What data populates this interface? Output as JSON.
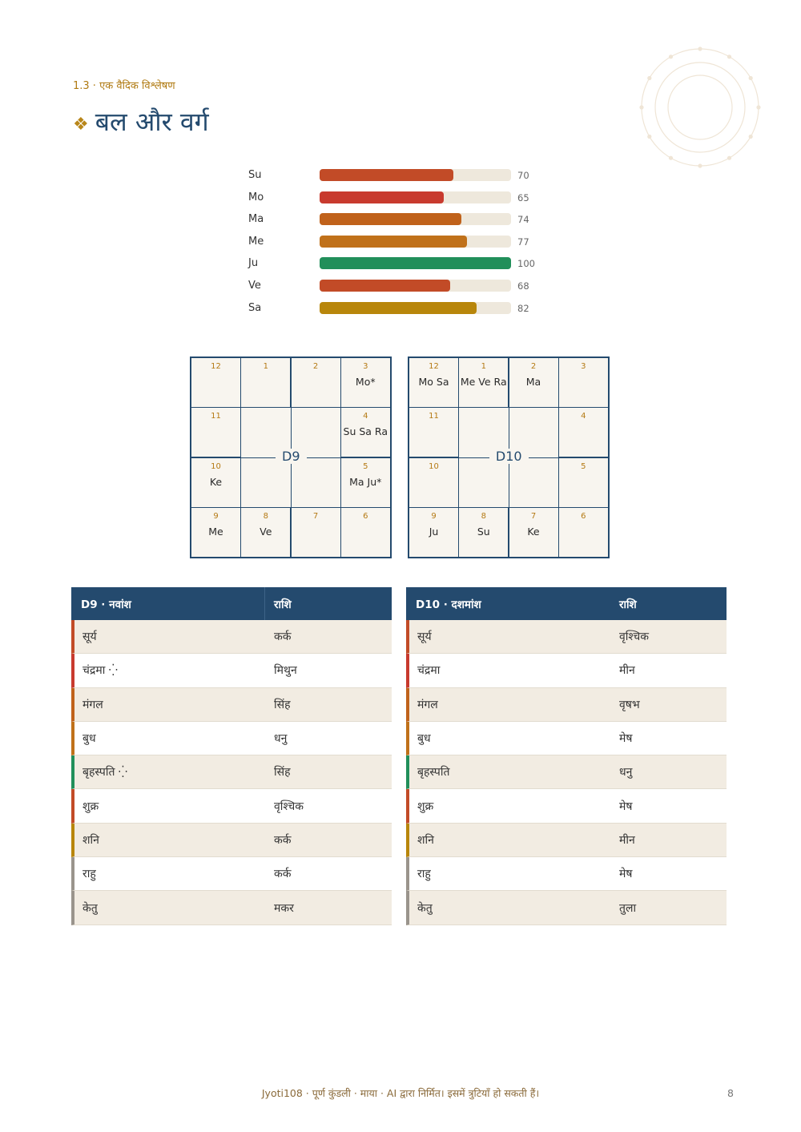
{
  "header": {
    "section_label": "1.3 · एक वैदिक विश्लेषण",
    "title_icon": "❖",
    "title": "बल और वर्ग"
  },
  "chart_data": {
    "type": "bar",
    "orientation": "horizontal",
    "categories": [
      "Su",
      "Mo",
      "Ma",
      "Me",
      "Ju",
      "Ve",
      "Sa"
    ],
    "values": [
      70,
      65,
      74,
      77,
      100,
      68,
      82
    ],
    "value_labels": [
      "70",
      "65",
      "74",
      "77",
      "100",
      "68",
      "82"
    ],
    "colors": [
      "#c24b27",
      "#c83a2e",
      "#c0621b",
      "#c0711a",
      "#218f5a",
      "#c24b27",
      "#b8860b"
    ],
    "xlim": [
      0,
      100
    ],
    "track_color": "#eee8dc"
  },
  "charts": [
    {
      "label": "D9",
      "houses": {
        "1": "",
        "2": "",
        "3": "Mo*",
        "4": "Su Sa Ra",
        "5": "Ma Ju*",
        "6": "",
        "7": "",
        "8": "Ve",
        "9": "Me",
        "10": "Ke",
        "11": "",
        "12": ""
      }
    },
    {
      "label": "D10",
      "houses": {
        "1": "Me Ve Ra",
        "2": "Ma",
        "3": "",
        "4": "",
        "5": "",
        "6": "",
        "7": "Ke",
        "8": "Su",
        "9": "Ju",
        "10": "",
        "11": "",
        "12": "Mo Sa"
      }
    }
  ],
  "tables": [
    {
      "col1": "D9 · नवांश",
      "col2": "राशि",
      "rows": [
        {
          "planet": "सूर्य",
          "sign": "कर्क",
          "color": "#c24b27"
        },
        {
          "planet": "चंद्रमा ⁛",
          "sign": "मिथुन",
          "color": "#c83a2e"
        },
        {
          "planet": "मंगल",
          "sign": "सिंह",
          "color": "#c0621b"
        },
        {
          "planet": "बुध",
          "sign": "धनु",
          "color": "#c0711a"
        },
        {
          "planet": "बृहस्पति ⁛",
          "sign": "सिंह",
          "color": "#218f5a"
        },
        {
          "planet": "शुक्र",
          "sign": "वृश्चिक",
          "color": "#c24b27"
        },
        {
          "planet": "शनि",
          "sign": "कर्क",
          "color": "#b8860b"
        },
        {
          "planet": "राहु",
          "sign": "कर्क",
          "color": "#9a948c"
        },
        {
          "planet": "केतु",
          "sign": "मकर",
          "color": "#9a948c"
        }
      ]
    },
    {
      "col1": "D10 · दशमांश",
      "col2": "राशि",
      "rows": [
        {
          "planet": "सूर्य",
          "sign": "वृश्चिक",
          "color": "#c24b27"
        },
        {
          "planet": "चंद्रमा",
          "sign": "मीन",
          "color": "#c83a2e"
        },
        {
          "planet": "मंगल",
          "sign": "वृषभ",
          "color": "#c0621b"
        },
        {
          "planet": "बुध",
          "sign": "मेष",
          "color": "#c0711a"
        },
        {
          "planet": "बृहस्पति",
          "sign": "धनु",
          "color": "#218f5a"
        },
        {
          "planet": "शुक्र",
          "sign": "मेष",
          "color": "#c24b27"
        },
        {
          "planet": "शनि",
          "sign": "मीन",
          "color": "#b8860b"
        },
        {
          "planet": "राहु",
          "sign": "मेष",
          "color": "#9a948c"
        },
        {
          "planet": "केतु",
          "sign": "तुला",
          "color": "#9a948c"
        }
      ]
    }
  ],
  "footer": {
    "text": "Jyoti108 · पूर्ण कुंडली · माया · AI द्वारा निर्मित। इसमें त्रुटियाँ हो सकती हैं।",
    "page_number": "8"
  }
}
